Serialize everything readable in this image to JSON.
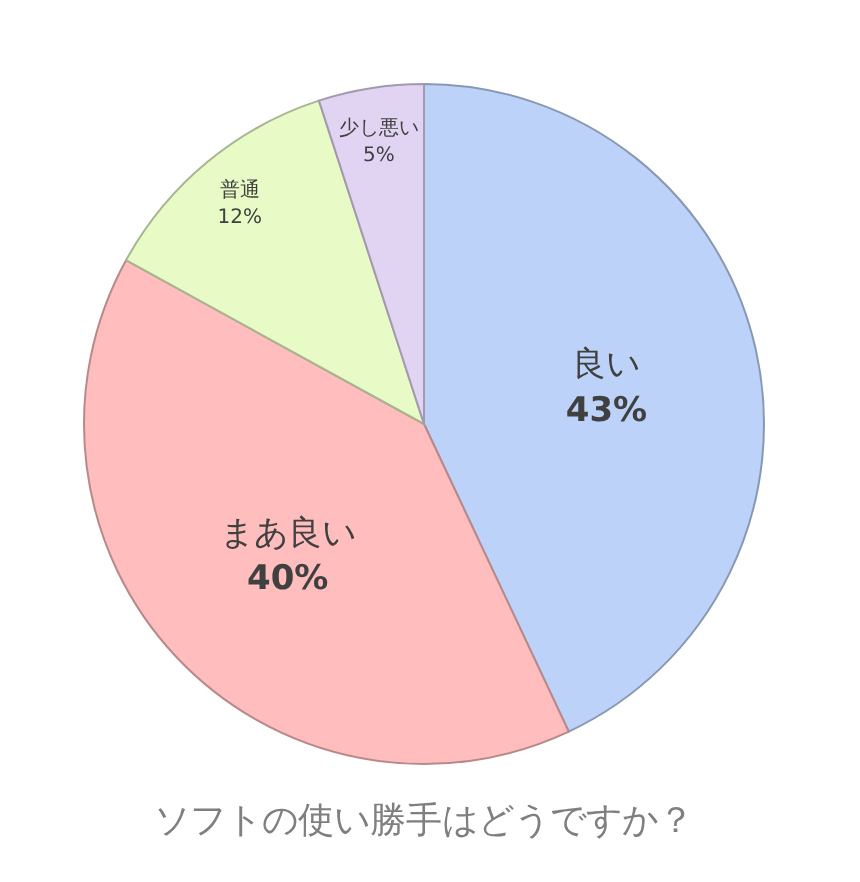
{
  "chart_data": {
    "type": "pie",
    "title": "ソフトの使い勝手はどうですか？",
    "categories": [
      "良い",
      "まあ良い",
      "普通",
      "少し悪い"
    ],
    "values": [
      43,
      40,
      12,
      5
    ],
    "value_labels": [
      "43%",
      "40%",
      "12%",
      "5%"
    ],
    "colors": [
      "#bcd2f8",
      "#ffbdbd",
      "#e8fac6",
      "#e0d4f2"
    ]
  }
}
